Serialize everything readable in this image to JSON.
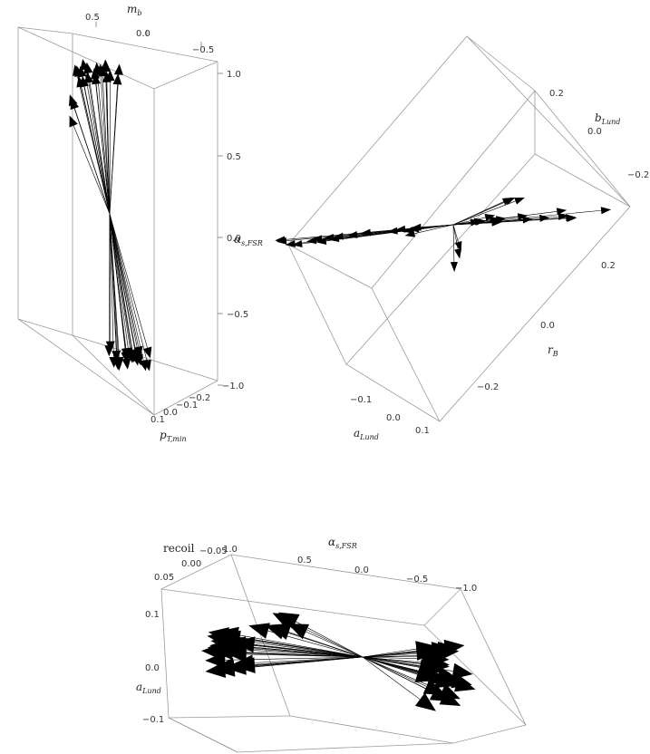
{
  "chart_data": [
    {
      "type": "3d-vector-field",
      "panel": "top-left",
      "axes": {
        "x": {
          "label": "m",
          "label_sub": "b",
          "ticks": [
            "0.5",
            "0.0",
            "−0.5"
          ]
        },
        "y": {
          "label": "p",
          "label_sub": "T,min",
          "ticks": [
            "0.1",
            "0.0",
            "−0.1",
            "−0.2"
          ]
        },
        "z": {
          "label": "α",
          "label_sub": "s,FSR",
          "ticks": [
            "1.0",
            "0.5",
            "0.0",
            "−0.5",
            "−1.0"
          ],
          "range": [
            -1.0,
            1.0
          ]
        }
      },
      "vectors": {
        "count": 44,
        "center_z": 0.0,
        "up_tip_z_range": [
          0.8,
          1.0
        ],
        "down_tip_z_range": [
          -0.7,
          -0.95
        ]
      }
    },
    {
      "type": "3d-vector-field",
      "panel": "top-right",
      "axes": {
        "x": {
          "label": "a",
          "label_sub": "Lund",
          "ticks": [
            "−0.1",
            "0.0",
            "0.1"
          ]
        },
        "y": {
          "label": "r",
          "label_sub": "B",
          "ticks": [
            "0.2",
            "0.0",
            "−0.2"
          ]
        },
        "z": {
          "label": "b",
          "label_sub": "Lund",
          "ticks": [
            "0.2",
            "0.0",
            "−0.2"
          ]
        }
      },
      "vectors": {
        "count": 40,
        "pattern": "mostly along r_B axis with small spread"
      }
    },
    {
      "type": "3d-vector-field",
      "panel": "bottom",
      "axes": {
        "x": {
          "label": "α",
          "label_sub": "s,FSR",
          "ticks": [
            "1.0",
            "0.5",
            "0.0",
            "−0.5",
            "−1.0"
          ]
        },
        "y": {
          "label": "recoil",
          "label_sub": "",
          "ticks": [
            "−0.05",
            "0.00",
            "0.05"
          ]
        },
        "z": {
          "label": "a",
          "label_sub": "Lund",
          "ticks": [
            "0.1",
            "0.0",
            "−0.1"
          ]
        }
      },
      "vectors": {
        "count": 60,
        "pattern": "dense cones pointing to ±α_s,FSR"
      }
    }
  ]
}
